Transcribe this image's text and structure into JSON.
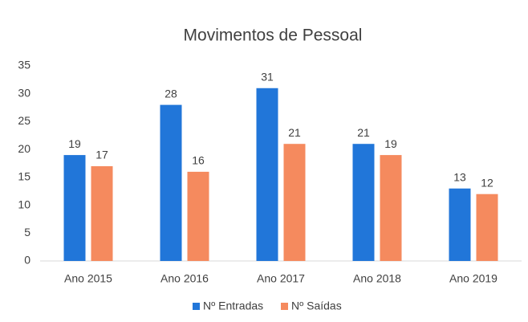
{
  "chart_data": {
    "type": "bar",
    "title": "Movimentos de Pessoal",
    "categories": [
      "Ano 2015",
      "Ano 2016",
      "Ano 2017",
      "Ano 2018",
      "Ano 2019"
    ],
    "series": [
      {
        "name": "Nº Entradas",
        "color": "#2176d9",
        "values": [
          19,
          28,
          31,
          21,
          13
        ]
      },
      {
        "name": "Nº Saídas",
        "color": "#f58a5e",
        "values": [
          17,
          16,
          21,
          19,
          12
        ]
      }
    ],
    "ylim": [
      0,
      35
    ],
    "yticks": [
      0,
      5,
      10,
      15,
      20,
      25,
      30,
      35
    ],
    "grid": false,
    "legend": "bottom"
  }
}
